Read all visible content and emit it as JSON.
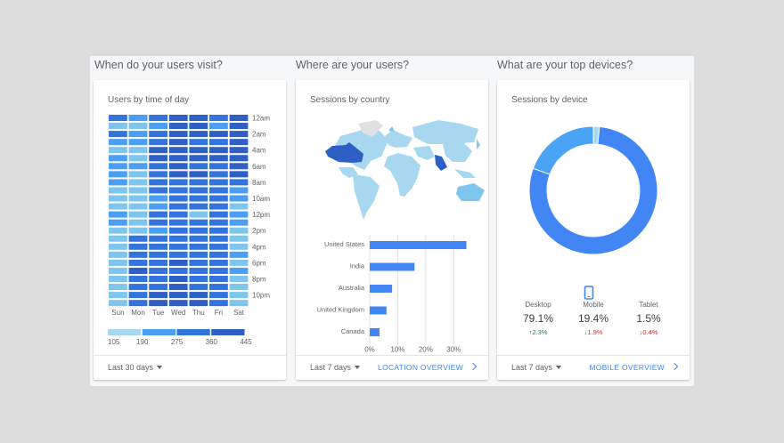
{
  "colors": {
    "heat1": "#a8d7f0",
    "heat2": "#7fc6ee",
    "heat3": "#4a9ff5",
    "heat4": "#3373de",
    "heat5": "#2d5fc4",
    "bar": "#4285f4",
    "link": "#4285f4",
    "up": "#188038",
    "down": "#d93025"
  },
  "sections": [
    {
      "title": "When do your users visit?"
    },
    {
      "title": "Where are your users?"
    },
    {
      "title": "What are your top devices?"
    }
  ],
  "time_card": {
    "subtitle": "Users by time of day",
    "days": [
      "Sun",
      "Mon",
      "Tue",
      "Wed",
      "Thu",
      "Fri",
      "Sat"
    ],
    "hour_labels": [
      "12am",
      "2am",
      "4am",
      "6am",
      "8am",
      "10am",
      "12pm",
      "2pm",
      "4pm",
      "6pm",
      "8pm",
      "10pm"
    ],
    "legend_values": [
      "105",
      "190",
      "275",
      "360",
      "445"
    ],
    "range": "Last 30 days",
    "heat_levels": [
      [
        3,
        2,
        3,
        4,
        4,
        3,
        4
      ],
      [
        1,
        1,
        2,
        4,
        4,
        2,
        4
      ],
      [
        3,
        2,
        3,
        4,
        4,
        4,
        4
      ],
      [
        2,
        2,
        3,
        4,
        3,
        3,
        4
      ],
      [
        1,
        1,
        4,
        4,
        4,
        4,
        4
      ],
      [
        2,
        1,
        4,
        4,
        4,
        4,
        4
      ],
      [
        2,
        2,
        3,
        4,
        3,
        3,
        4
      ],
      [
        2,
        1,
        3,
        4,
        4,
        3,
        4
      ],
      [
        2,
        1,
        3,
        3,
        3,
        3,
        3
      ],
      [
        1,
        1,
        3,
        3,
        3,
        3,
        2
      ],
      [
        1,
        1,
        2,
        3,
        3,
        3,
        2
      ],
      [
        1,
        1,
        2,
        3,
        3,
        3,
        1
      ],
      [
        2,
        1,
        3,
        3,
        1,
        3,
        2
      ],
      [
        2,
        1,
        3,
        3,
        3,
        3,
        2
      ],
      [
        1,
        1,
        2,
        3,
        3,
        3,
        1
      ],
      [
        1,
        3,
        3,
        3,
        3,
        3,
        1
      ],
      [
        1,
        3,
        3,
        3,
        3,
        3,
        1
      ],
      [
        1,
        3,
        3,
        3,
        3,
        3,
        2
      ],
      [
        1,
        3,
        3,
        4,
        3,
        3,
        1
      ],
      [
        1,
        4,
        3,
        3,
        3,
        3,
        2
      ],
      [
        1,
        3,
        3,
        4,
        3,
        3,
        1
      ],
      [
        1,
        3,
        3,
        4,
        3,
        3,
        1
      ],
      [
        1,
        3,
        4,
        4,
        4,
        3,
        1
      ],
      [
        1,
        3,
        4,
        4,
        4,
        3,
        1
      ]
    ]
  },
  "country_card": {
    "subtitle": "Sessions by country",
    "range": "Last 7 days",
    "overview": "LOCATION OVERVIEW",
    "axis_ticks": [
      "0%",
      "10%",
      "20%",
      "30%"
    ]
  },
  "chart_data": {
    "type": "bar",
    "orientation": "horizontal",
    "categories": [
      "United States",
      "India",
      "Australia",
      "United Kingdom",
      "Canada"
    ],
    "values": [
      34.5,
      16,
      8,
      6,
      3.5
    ],
    "xlim": [
      0,
      35
    ],
    "x_ticks": [
      "0%",
      "10%",
      "20%",
      "30%"
    ],
    "grid": true
  },
  "device_card": {
    "subtitle": "Sessions by device",
    "range": "Last 7 days",
    "overview": "MOBILE OVERVIEW",
    "devices": [
      {
        "label": "Desktop",
        "value": "79.1%",
        "change": "2.3%",
        "direction": "up",
        "share": 79.1,
        "color": "#4285f4"
      },
      {
        "label": "Mobile",
        "value": "19.4%",
        "change": "1.9%",
        "direction": "down",
        "share": 19.4,
        "color": "#4aa3f4"
      },
      {
        "label": "Tablet",
        "value": "1.5%",
        "change": "0.4%",
        "direction": "down",
        "share": 1.5,
        "color": "#a8d7f0"
      }
    ]
  }
}
